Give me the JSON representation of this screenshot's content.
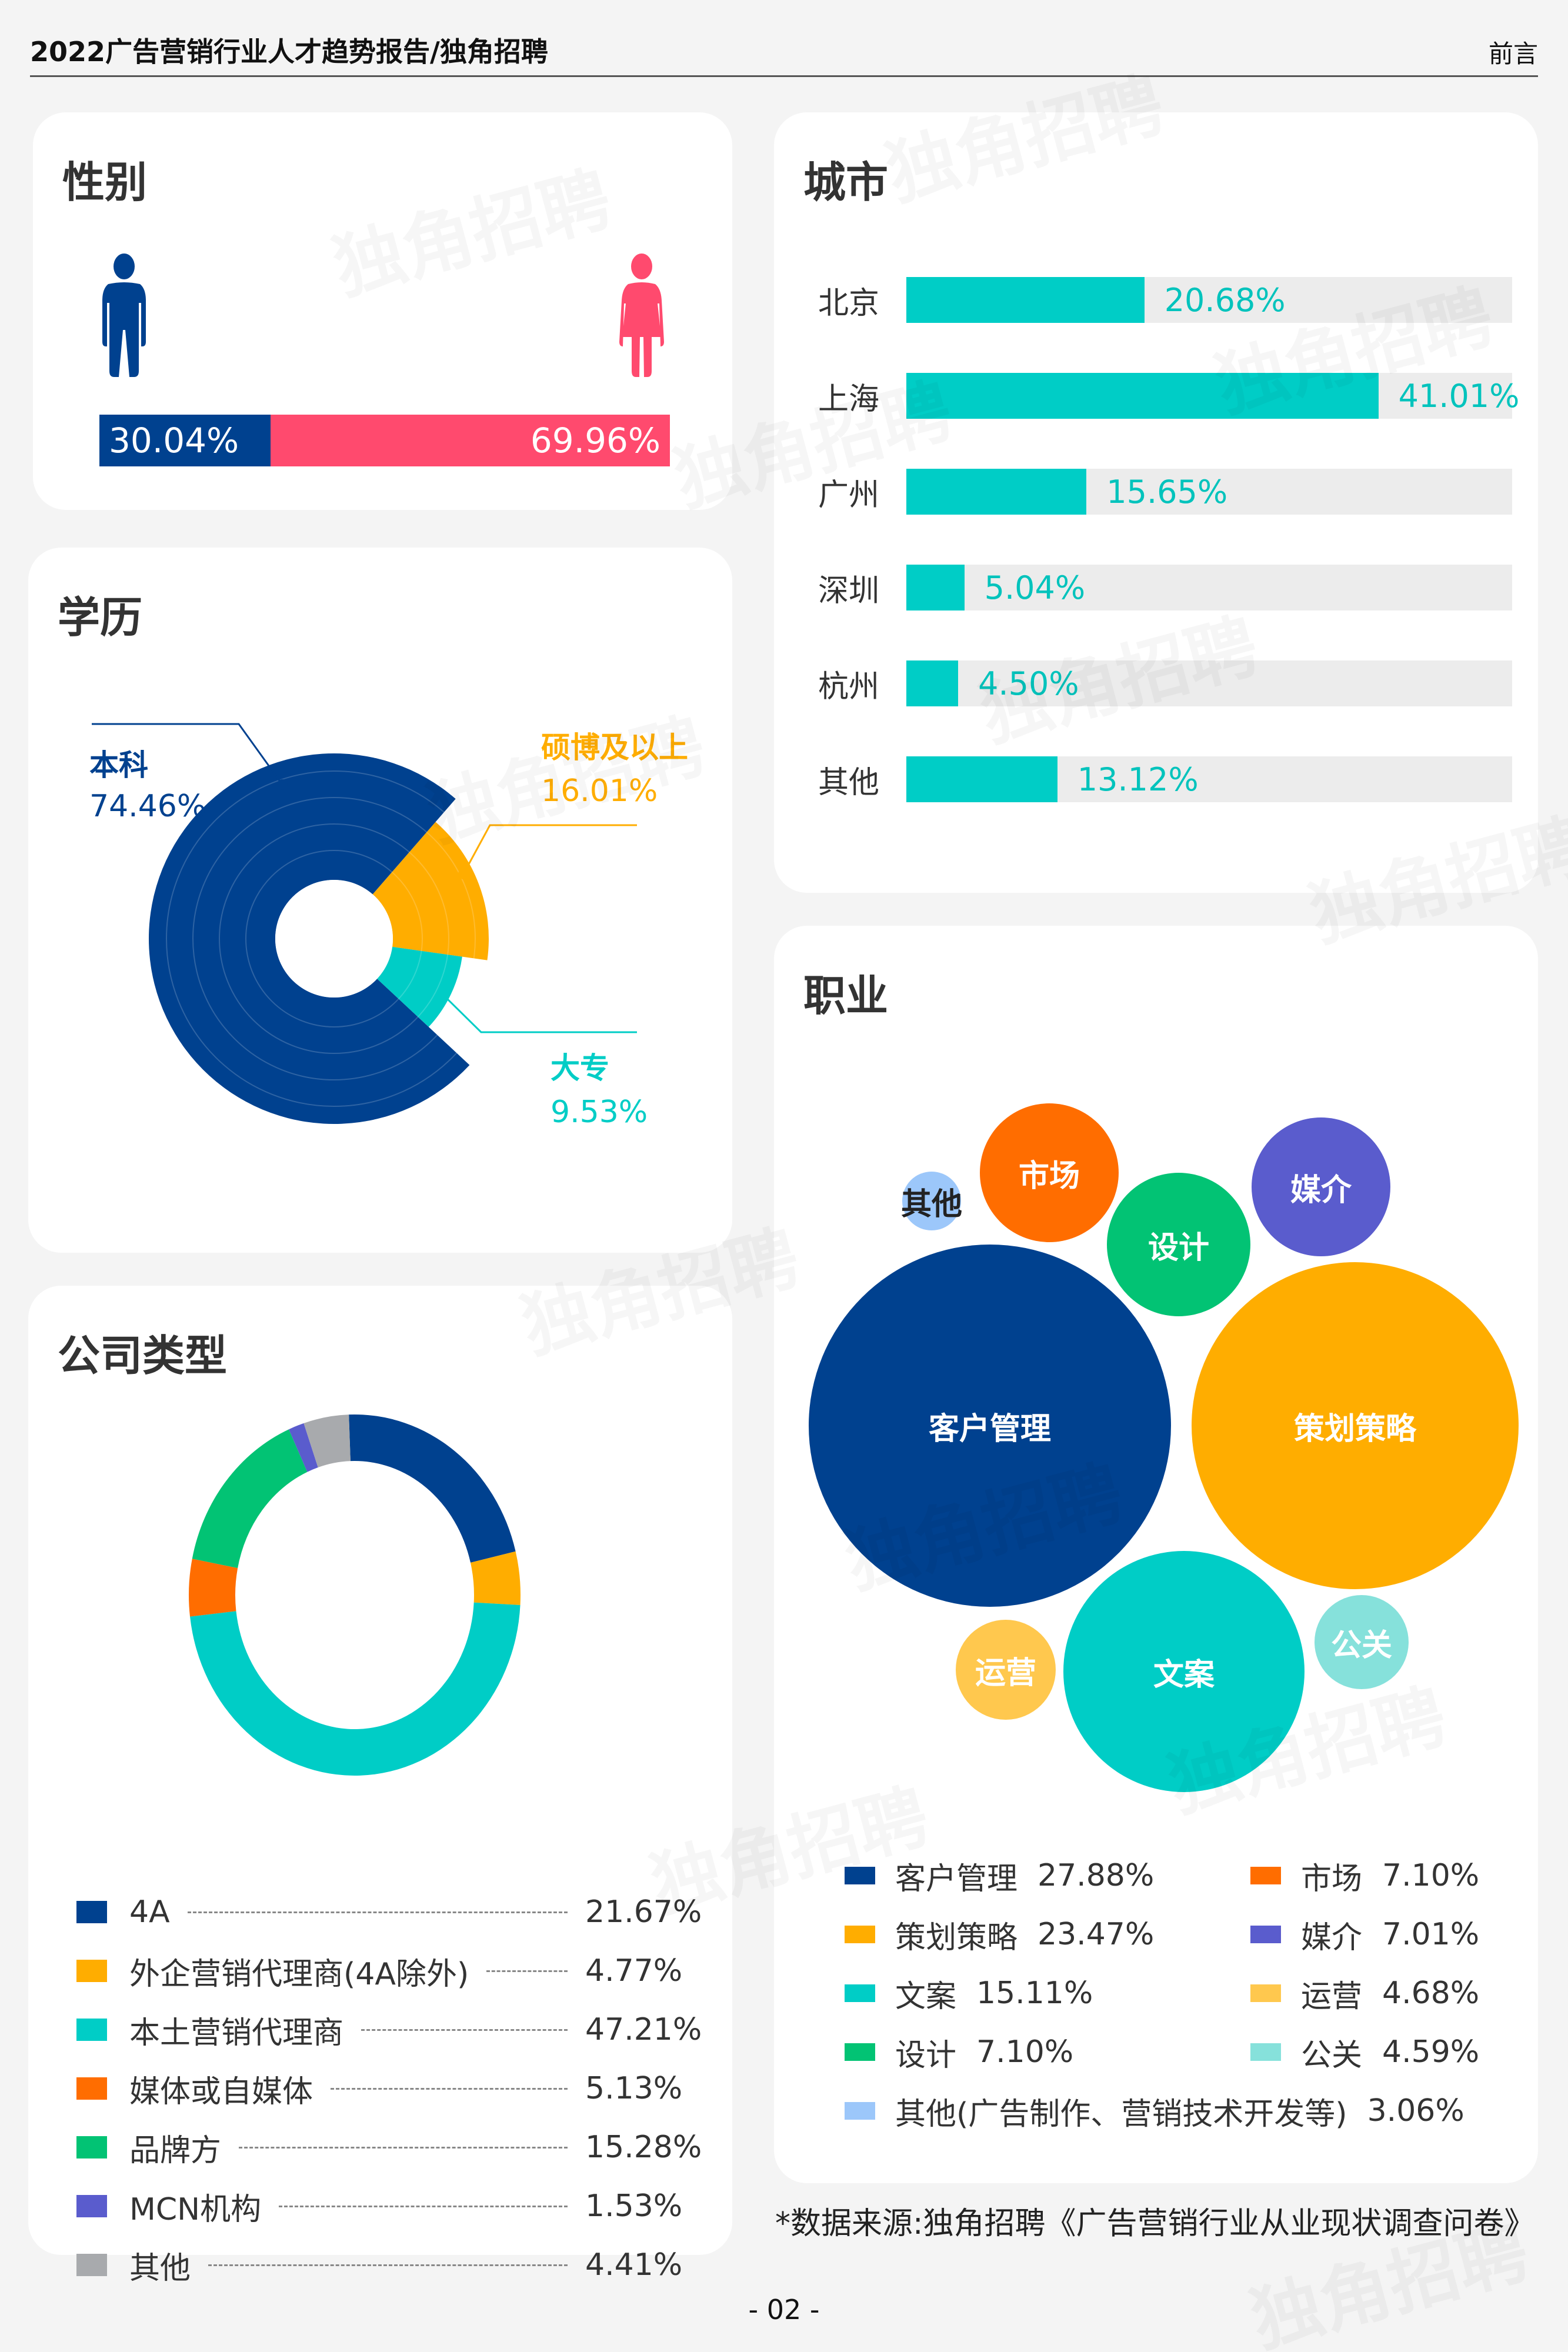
{
  "header": {
    "title": "2022广告营销行业人才趋势报告/独角招聘",
    "section": "前言"
  },
  "watermark": "独角招聘",
  "colors": {
    "navy": "#00418f",
    "pink": "#ff4a6e",
    "orange_yellow": "#ffad00",
    "teal": "#00cdc6",
    "orange": "#ff6d00",
    "green": "#02c374",
    "purple": "#5a5ccd",
    "gray": "#a8aaad",
    "light_yellow": "#ffc84e",
    "light_teal": "#86e1db",
    "light_blue": "#9cc7fa"
  },
  "gender": {
    "title": "性别",
    "male": {
      "icon": "male-icon",
      "value": 30.04,
      "label": "30.04%"
    },
    "female": {
      "icon": "female-icon",
      "value": 69.96,
      "label": "69.96%"
    }
  },
  "education": {
    "title": "学历",
    "items": [
      {
        "name": "本科",
        "value": 74.46,
        "label": "74.46%",
        "color": "#00418f"
      },
      {
        "name": "硕博及以上",
        "value": 16.01,
        "label": "16.01%",
        "color": "#ffad00"
      },
      {
        "name": "大专",
        "value": 9.53,
        "label": "9.53%",
        "color": "#00cdc6"
      }
    ]
  },
  "company": {
    "title": "公司类型",
    "items": [
      {
        "name": "4A",
        "value": 21.67,
        "label": "21.67%",
        "color": "#00418f"
      },
      {
        "name": "外企营销代理商(4A除外)",
        "value": 4.77,
        "label": "4.77%",
        "color": "#ffad00"
      },
      {
        "name": "本土营销代理商",
        "value": 47.21,
        "label": "47.21%",
        "color": "#00cdc6"
      },
      {
        "name": "媒体或自媒体",
        "value": 5.13,
        "label": "5.13%",
        "color": "#ff6d00"
      },
      {
        "name": "品牌方",
        "value": 15.28,
        "label": "15.28%",
        "color": "#02c374"
      },
      {
        "name": "MCN机构",
        "value": 1.53,
        "label": "1.53%",
        "color": "#5a5ccd"
      },
      {
        "name": "其他",
        "value": 4.41,
        "label": "4.41%",
        "color": "#a8aaad"
      }
    ]
  },
  "city": {
    "title": "城市",
    "items": [
      {
        "name": "北京",
        "value": 20.68,
        "label": "20.68%"
      },
      {
        "name": "上海",
        "value": 41.01,
        "label": "41.01%"
      },
      {
        "name": "广州",
        "value": 15.65,
        "label": "15.65%"
      },
      {
        "name": "深圳",
        "value": 5.04,
        "label": "5.04%"
      },
      {
        "name": "杭州",
        "value": 4.5,
        "label": "4.50%"
      },
      {
        "name": "其他",
        "value": 13.12,
        "label": "13.12%"
      }
    ]
  },
  "occupation": {
    "title": "职业",
    "items": [
      {
        "name": "客户管理",
        "value": 27.88,
        "label": "27.88%",
        "color": "#00418f"
      },
      {
        "name": "策划策略",
        "value": 23.47,
        "label": "23.47%",
        "color": "#ffad00"
      },
      {
        "name": "文案",
        "value": 15.11,
        "label": "15.11%",
        "color": "#00cdc6"
      },
      {
        "name": "设计",
        "value": 7.1,
        "label": "7.10%",
        "color": "#02c374"
      },
      {
        "name": "市场",
        "value": 7.1,
        "label": "7.10%",
        "color": "#ff6d00"
      },
      {
        "name": "媒介",
        "value": 7.01,
        "label": "7.01%",
        "color": "#5a5ccd"
      },
      {
        "name": "运营",
        "value": 4.68,
        "label": "4.68%",
        "color": "#ffc84e"
      },
      {
        "name": "公关",
        "value": 4.59,
        "label": "4.59%",
        "color": "#86e1db"
      },
      {
        "name": "其他",
        "value": 3.06,
        "label": "3.06%",
        "color": "#9cc7fa"
      }
    ],
    "other_legend_name": "其他(广告制作、营销技术开发等)"
  },
  "footer": {
    "source": "*数据来源:独角招聘《广告营销行业从业现状调查问卷》",
    "page": "- 02 -"
  },
  "chart_data": [
    {
      "type": "bar",
      "title": "性别",
      "categories": [
        "男",
        "女"
      ],
      "values": [
        30.04,
        69.96
      ],
      "unit": "%",
      "orientation": "horizontal-stacked"
    },
    {
      "type": "pie",
      "title": "学历",
      "categories": [
        "本科",
        "硕博及以上",
        "大专"
      ],
      "values": [
        74.46,
        16.01,
        9.53
      ],
      "unit": "%",
      "style": "radial-donut"
    },
    {
      "type": "pie",
      "title": "公司类型",
      "categories": [
        "4A",
        "外企营销代理商(4A除外)",
        "本土营销代理商",
        "媒体或自媒体",
        "品牌方",
        "MCN机构",
        "其他"
      ],
      "values": [
        21.67,
        4.77,
        47.21,
        5.13,
        15.28,
        1.53,
        4.41
      ],
      "unit": "%",
      "style": "donut",
      "legend_position": "bottom"
    },
    {
      "type": "bar",
      "title": "城市",
      "categories": [
        "北京",
        "上海",
        "广州",
        "深圳",
        "杭州",
        "其他"
      ],
      "values": [
        20.68,
        41.01,
        15.65,
        5.04,
        4.5,
        13.12
      ],
      "unit": "%",
      "orientation": "horizontal",
      "xlim": [
        0,
        100
      ]
    },
    {
      "type": "scatter",
      "title": "职业",
      "style": "bubble",
      "categories": [
        "客户管理",
        "策划策略",
        "文案",
        "设计",
        "市场",
        "媒介",
        "运营",
        "公关",
        "其他(广告制作、营销技术开发等)"
      ],
      "values": [
        27.88,
        23.47,
        15.11,
        7.1,
        7.1,
        7.01,
        4.68,
        4.59,
        3.06
      ],
      "unit": "%",
      "legend_position": "bottom"
    }
  ]
}
